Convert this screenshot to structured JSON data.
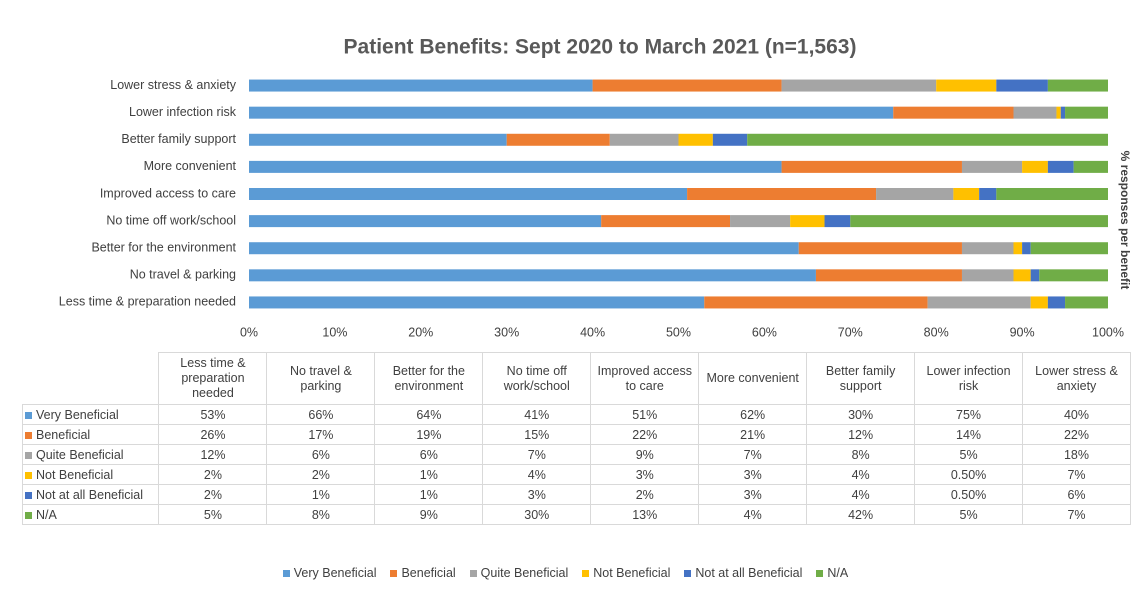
{
  "chart_data": {
    "type": "stacked_bar_horizontal",
    "title": "Patient Benefits: Sept 2020 to March 2021 (n=1,563)",
    "y2_label": "% responses per benefit",
    "categories": [
      "Less time & preparation needed",
      "No travel & parking",
      "Better for the environment",
      "No time off work/school",
      "Improved access to care",
      "More convenient",
      "Better family support",
      "Lower infection risk",
      "Lower stress & anxiety"
    ],
    "series": [
      {
        "name": "Very Beneficial",
        "color": "#5b9bd5",
        "values": [
          53,
          66,
          64,
          41,
          51,
          62,
          30,
          75,
          40
        ],
        "value_labels": [
          "53%",
          "66%",
          "64%",
          "41%",
          "51%",
          "62%",
          "30%",
          "75%",
          "40%"
        ]
      },
      {
        "name": "Beneficial",
        "color": "#ed7d31",
        "values": [
          26,
          17,
          19,
          15,
          22,
          21,
          12,
          14,
          22
        ],
        "value_labels": [
          "26%",
          "17%",
          "19%",
          "15%",
          "22%",
          "21%",
          "12%",
          "14%",
          "22%"
        ]
      },
      {
        "name": "Quite Beneficial",
        "color": "#a5a5a5",
        "values": [
          12,
          6,
          6,
          7,
          9,
          7,
          8,
          5,
          18
        ],
        "value_labels": [
          "12%",
          "6%",
          "6%",
          "7%",
          "9%",
          "7%",
          "8%",
          "5%",
          "18%"
        ]
      },
      {
        "name": "Not Beneficial",
        "color": "#ffc000",
        "values": [
          2,
          2,
          1,
          4,
          3,
          3,
          4,
          0.5,
          7
        ],
        "value_labels": [
          "2%",
          "2%",
          "1%",
          "4%",
          "3%",
          "3%",
          "4%",
          "0.50%",
          "7%"
        ]
      },
      {
        "name": "Not at all Beneficial",
        "color": "#4472c4",
        "values": [
          2,
          1,
          1,
          3,
          2,
          3,
          4,
          0.5,
          6
        ],
        "value_labels": [
          "2%",
          "1%",
          "1%",
          "3%",
          "2%",
          "3%",
          "4%",
          "0.50%",
          "6%"
        ]
      },
      {
        "name": "N/A",
        "color": "#70ad47",
        "values": [
          5,
          8,
          9,
          30,
          13,
          4,
          42,
          5,
          7
        ],
        "value_labels": [
          "5%",
          "8%",
          "9%",
          "30%",
          "13%",
          "4%",
          "42%",
          "5%",
          "7%"
        ]
      }
    ],
    "xlim": [
      0,
      100
    ],
    "xticks": [
      {
        "value": 0,
        "label": "0%"
      },
      {
        "value": 10,
        "label": "10%"
      },
      {
        "value": 20,
        "label": "20%"
      },
      {
        "value": 30,
        "label": "30%"
      },
      {
        "value": 40,
        "label": "40%"
      },
      {
        "value": 50,
        "label": "50%"
      },
      {
        "value": 60,
        "label": "60%"
      },
      {
        "value": 70,
        "label": "70%"
      },
      {
        "value": 80,
        "label": "80%"
      },
      {
        "value": 90,
        "label": "90%"
      },
      {
        "value": 100,
        "label": "100%"
      }
    ]
  }
}
